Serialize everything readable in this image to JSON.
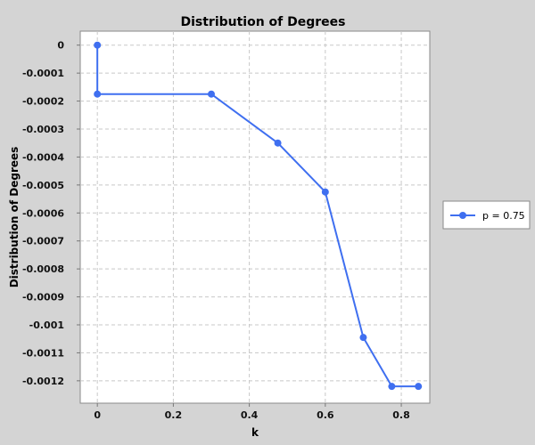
{
  "colors": {
    "background": "#d4d4d4",
    "plot_background": "#ffffff",
    "gridline": "#c8c8c8",
    "series": "#3f6ff0"
  },
  "chart_data": {
    "type": "line",
    "title": "Distribution of Degrees",
    "xlabel": "k",
    "ylabel": "Distribution of Degrees",
    "xlim": [
      -0.045,
      0.875
    ],
    "ylim": [
      -0.00128,
      5e-05
    ],
    "xticks": [
      0,
      0.2,
      0.4,
      0.6,
      0.8
    ],
    "xtick_labels": [
      "0",
      "0.2",
      "0.4",
      "0.6",
      "0.8"
    ],
    "yticks": [
      0,
      -0.0001,
      -0.0002,
      -0.0003,
      -0.0004,
      -0.0005,
      -0.0006,
      -0.0007,
      -0.0008,
      -0.0009,
      -0.001,
      -0.0011,
      -0.0012
    ],
    "ytick_labels": [
      "0",
      "-0.0001",
      "-0.0002",
      "-0.0003",
      "-0.0004",
      "-0.0005",
      "-0.0006",
      "-0.0007",
      "-0.0008",
      "-0.0009",
      "-0.001",
      "-0.0011",
      "-0.0012"
    ],
    "grid": true,
    "legend_position": "right",
    "series": [
      {
        "name": "p = 0.75",
        "x": [
          0,
          0,
          0.3,
          0.475,
          0.6,
          0.7,
          0.775,
          0.845
        ],
        "y": [
          0,
          -0.000175,
          -0.000175,
          -0.00035,
          -0.000525,
          -0.001045,
          -0.00122,
          -0.00122
        ]
      }
    ]
  }
}
